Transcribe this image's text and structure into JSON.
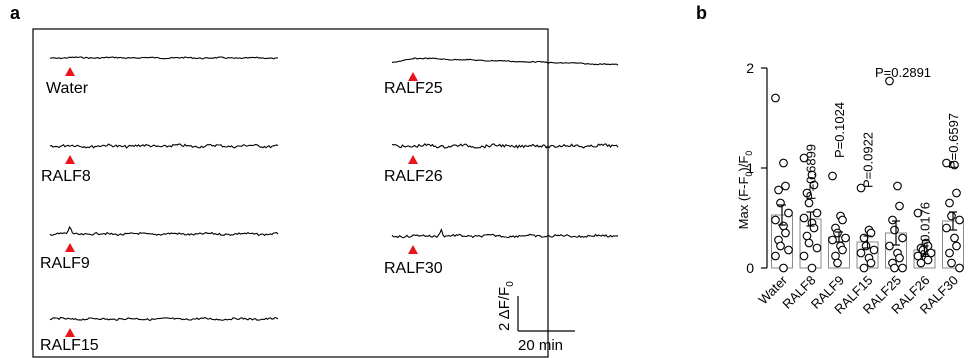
{
  "panel_a": {
    "label": "a",
    "traces": [
      {
        "name": "Water"
      },
      {
        "name": "RALF8"
      },
      {
        "name": "RALF9"
      },
      {
        "name": "RALF15"
      },
      {
        "name": "RALF25"
      },
      {
        "name": "RALF26"
      },
      {
        "name": "RALF30"
      }
    ],
    "scalebar": {
      "y_label": "2 ΔF/F",
      "y_label_sub": "0",
      "x_label": "20 min"
    },
    "colors": {
      "marker": "#e8141c",
      "trace": "#000000"
    }
  },
  "panel_b": {
    "label": "b"
  },
  "chart_data": {
    "type": "bar",
    "title": "",
    "ylabel": "Max (F-F",
    "ylabel_sub": "0",
    "ylabel_tail": ")/F",
    "ylabel_sub2": "0",
    "xlabel": "",
    "ylim": [
      0,
      2
    ],
    "yticks": [
      0,
      1,
      2
    ],
    "categories": [
      "Water",
      "RALF8",
      "RALF9",
      "RALF15",
      "RALF25",
      "RALF26",
      "RALF30"
    ],
    "values": [
      0.53,
      0.49,
      0.31,
      0.26,
      0.35,
      0.18,
      0.47
    ],
    "errors": [
      0.1,
      0.07,
      0.05,
      0.06,
      0.12,
      0.04,
      0.09
    ],
    "p_values": [
      "",
      "P=0.6899",
      "P=0.1024",
      "P=0.0922",
      "P=0.2891",
      "P=0.0176",
      "P=0.6597"
    ],
    "points": [
      [
        1.7,
        1.05,
        0.82,
        0.78,
        0.65,
        0.55,
        0.48,
        0.42,
        0.35,
        0.28,
        0.22,
        0.18,
        0.12,
        0.0
      ],
      [
        1.1,
        0.93,
        0.83,
        0.75,
        0.65,
        0.55,
        0.5,
        0.45,
        0.4,
        0.32,
        0.25,
        0.2,
        0.12,
        0.0
      ],
      [
        0.92,
        0.52,
        0.48,
        0.4,
        0.35,
        0.3,
        0.28,
        0.22,
        0.18,
        0.12,
        0.05
      ],
      [
        0.8,
        0.38,
        0.35,
        0.3,
        0.22,
        0.18,
        0.15,
        0.1,
        0.05,
        0.0
      ],
      [
        1.87,
        0.82,
        0.62,
        0.48,
        0.38,
        0.3,
        0.22,
        0.15,
        0.1,
        0.05,
        0.0,
        0.0
      ],
      [
        0.55,
        0.25,
        0.22,
        0.2,
        0.18,
        0.15,
        0.12,
        0.1,
        0.08,
        0.05
      ],
      [
        1.05,
        1.03,
        0.75,
        0.65,
        0.52,
        0.48,
        0.4,
        0.3,
        0.22,
        0.15,
        0.05,
        0.0
      ]
    ],
    "grid": false,
    "legend": "none"
  }
}
